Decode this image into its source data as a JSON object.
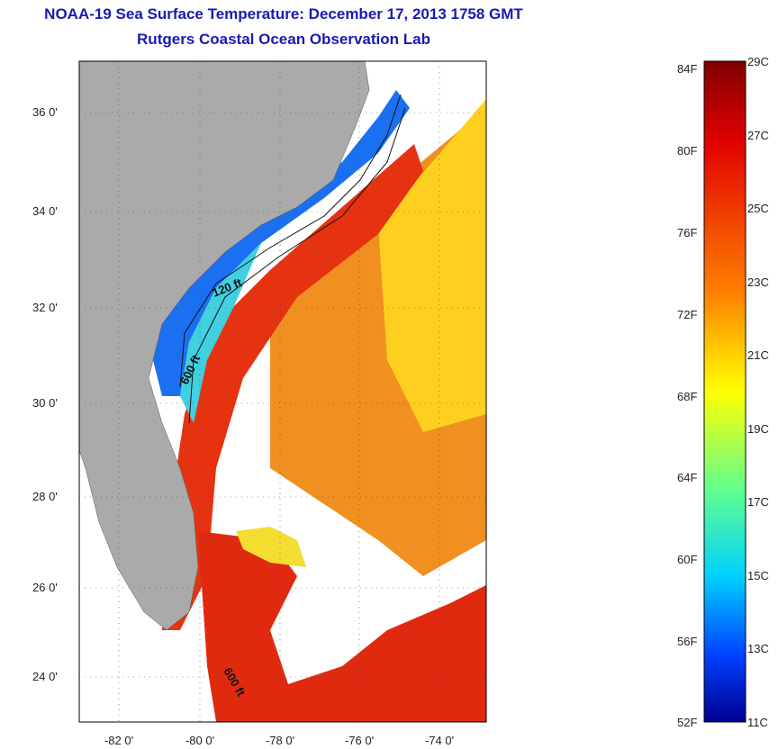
{
  "titles": {
    "line1": "NOAA-19 Sea Surface Temperature:  December 17, 2013 1758 GMT",
    "line2": "Rutgers Coastal Ocean Observation Lab"
  },
  "map": {
    "lat_ticks": [
      "36 0'",
      "34 0'",
      "32 0'",
      "30 0'",
      "28 0'",
      "26 0'",
      "24 0'"
    ],
    "lon_ticks": [
      "-82 0'",
      "-80 0'",
      "-78 0'",
      "-76 0'",
      "-74 0'"
    ],
    "isobath_labels": [
      "120 ft",
      "600 ft",
      "600 ft"
    ],
    "colors": {
      "land": "#aaaaaa",
      "cloud": "#ffffff",
      "coastal_cold": "#0a2fcc",
      "gulf_stream": "#e53210",
      "offshore": "#ee8a18",
      "far_offshore": "#ffd11f"
    }
  },
  "colorbar": {
    "fahrenheit_labels": [
      "84F",
      "80F",
      "76F",
      "72F",
      "68F",
      "64F",
      "60F",
      "56F",
      "52F"
    ],
    "celsius_labels": [
      "29C",
      "27C",
      "25C",
      "23C",
      "21C",
      "19C",
      "17C",
      "15C",
      "13C",
      "11C"
    ],
    "colormap": "jet",
    "range_c": [
      11,
      29
    ],
    "range_f": [
      52,
      84
    ]
  }
}
